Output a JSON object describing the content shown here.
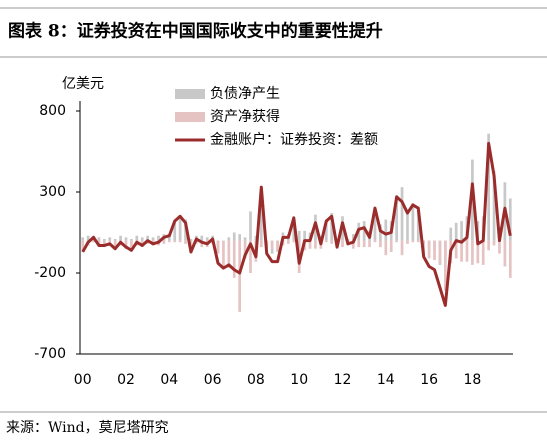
{
  "chart_data": {
    "type": "bar",
    "title": "图表 8：证券投资在中国国际收支中的重要性提升",
    "y_label": "亿美元",
    "source": "来源：Wind，莫尼塔研究",
    "categories": [
      "00",
      null,
      null,
      null,
      "",
      null,
      null,
      null,
      "02",
      null,
      null,
      null,
      "",
      null,
      null,
      null,
      "04",
      null,
      null,
      null,
      "",
      null,
      null,
      null,
      "06",
      null,
      null,
      null,
      "",
      null,
      null,
      null,
      "08",
      null,
      null,
      null,
      "",
      null,
      null,
      null,
      "10",
      null,
      null,
      null,
      "",
      null,
      null,
      null,
      "12",
      null,
      null,
      null,
      "",
      null,
      null,
      null,
      "14",
      null,
      null,
      null,
      "",
      null,
      null,
      null,
      "16",
      null,
      null,
      null,
      "",
      null,
      null,
      null,
      "18",
      null,
      null,
      null,
      "",
      null,
      null,
      null
    ],
    "ylim": [
      -700,
      800
    ],
    "yticks": [
      800,
      300,
      -200,
      -700
    ],
    "series": [
      {
        "name": "负债净产生",
        "type": "bar",
        "color": "#c8c8c8",
        "values": [
          20,
          30,
          30,
          20,
          10,
          20,
          10,
          30,
          20,
          10,
          30,
          20,
          30,
          20,
          30,
          40,
          40,
          120,
          150,
          130,
          10,
          30,
          30,
          20,
          30,
          -60,
          0,
          20,
          50,
          40,
          20,
          180,
          30,
          290,
          -30,
          -80,
          -70,
          50,
          40,
          150,
          60,
          60,
          50,
          160,
          30,
          130,
          170,
          10,
          150,
          10,
          40,
          110,
          120,
          60,
          210,
          100,
          130,
          120,
          280,
          330,
          190,
          230,
          210,
          -10,
          -50,
          -60,
          -150,
          -90,
          80,
          110,
          120,
          150,
          500,
          120,
          150,
          660,
          430,
          80,
          360,
          260
        ]
      },
      {
        "name": "资产净获得",
        "type": "bar",
        "color": "#e6c3c3",
        "values": [
          -60,
          -30,
          -10,
          -40,
          -40,
          -30,
          -50,
          -30,
          -50,
          -60,
          -30,
          -40,
          -20,
          -30,
          -30,
          -20,
          -10,
          -10,
          -10,
          -20,
          -80,
          -20,
          -40,
          -40,
          -20,
          -80,
          -170,
          -170,
          -230,
          -440,
          -110,
          -200,
          -130,
          -40,
          -50,
          -50,
          -60,
          -30,
          -20,
          -10,
          -200,
          -60,
          -50,
          -50,
          -50,
          -10,
          -20,
          -50,
          -40,
          -30,
          -50,
          -40,
          -40,
          -40,
          -10,
          -40,
          -90,
          -70,
          -10,
          -90,
          -20,
          -10,
          -10,
          -90,
          -110,
          -120,
          -140,
          -310,
          -140,
          -110,
          -130,
          -130,
          -150,
          -140,
          -150,
          -60,
          -30,
          -80,
          -160,
          -230
        ]
      },
      {
        "name": "金融账户：证券投资：差额",
        "type": "line",
        "color": "#9b2c2c",
        "values": [
          -70,
          -10,
          20,
          -30,
          -30,
          -20,
          -50,
          -10,
          -40,
          -60,
          -10,
          -30,
          0,
          -20,
          -10,
          20,
          30,
          120,
          150,
          110,
          -70,
          10,
          -10,
          -20,
          10,
          -140,
          -170,
          -150,
          -180,
          -200,
          -90,
          -20,
          -100,
          330,
          -80,
          -130,
          -130,
          20,
          20,
          140,
          -140,
          0,
          0,
          110,
          -20,
          120,
          150,
          -40,
          110,
          -20,
          -10,
          70,
          80,
          20,
          200,
          60,
          40,
          50,
          270,
          240,
          170,
          220,
          200,
          -100,
          -160,
          -180,
          -290,
          -400,
          -60,
          0,
          -10,
          20,
          350,
          -20,
          0,
          600,
          400,
          0,
          200,
          30
        ]
      }
    ]
  }
}
